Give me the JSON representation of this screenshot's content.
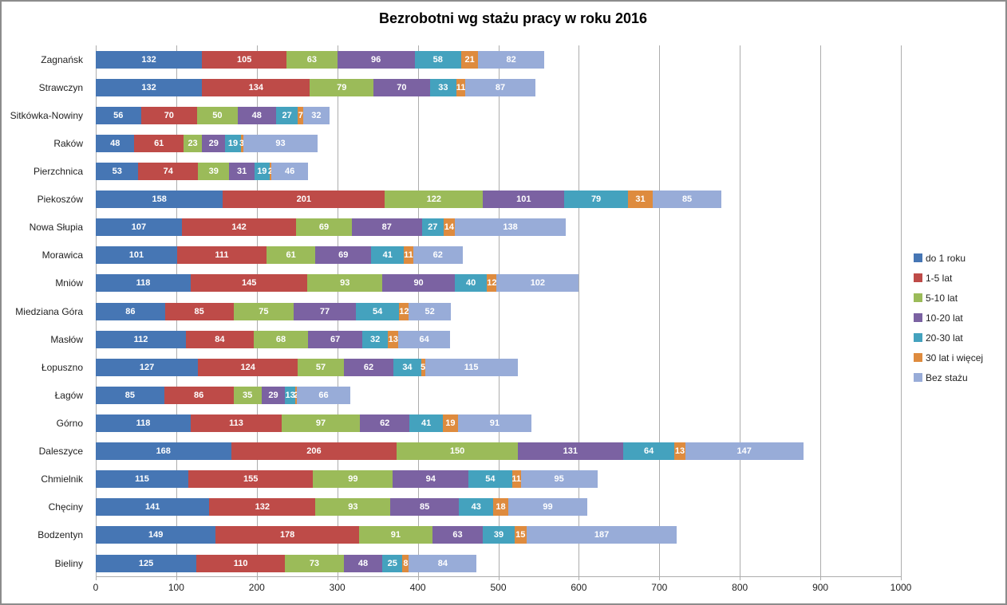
{
  "chart_data": {
    "type": "bar",
    "orientation": "horizontal",
    "stacked": true,
    "title": "Bezrobotni wg stażu pracy w roku 2016",
    "xlabel": "",
    "ylabel": "",
    "xlim": [
      0,
      1000
    ],
    "x_ticks": [
      0,
      100,
      200,
      300,
      400,
      500,
      600,
      700,
      800,
      900,
      1000
    ],
    "grid": true,
    "legend_position": "right",
    "data_labels": true,
    "data_label_color": "#ffffff",
    "categories": [
      "Zagnańsk",
      "Strawczyn",
      "Sitkówka-Nowiny",
      "Raków",
      "Pierzchnica",
      "Piekoszów",
      "Nowa Słupia",
      "Morawica",
      "Mniów",
      "Miedziana Góra",
      "Masłów",
      "Łopuszno",
      "Łagów",
      "Górno",
      "Daleszyce",
      "Chmielnik",
      "Chęciny",
      "Bodzentyn",
      "Bieliny"
    ],
    "series": [
      {
        "name": "do 1 roku",
        "color": "#4676b4",
        "values": [
          132,
          132,
          56,
          48,
          53,
          158,
          107,
          101,
          118,
          86,
          112,
          127,
          85,
          118,
          168,
          115,
          141,
          149,
          125
        ]
      },
      {
        "name": "1-5 lat",
        "color": "#be4b48",
        "values": [
          105,
          134,
          70,
          61,
          74,
          201,
          142,
          111,
          145,
          85,
          84,
          124,
          86,
          113,
          206,
          155,
          132,
          178,
          110
        ]
      },
      {
        "name": "5-10 lat",
        "color": "#9bbb59",
        "values": [
          63,
          79,
          50,
          23,
          39,
          122,
          69,
          61,
          93,
          75,
          68,
          57,
          35,
          97,
          150,
          99,
          93,
          91,
          73
        ]
      },
      {
        "name": "10-20 lat",
        "color": "#7b62a2",
        "values": [
          96,
          70,
          48,
          29,
          31,
          101,
          87,
          69,
          90,
          77,
          67,
          62,
          29,
          62,
          131,
          94,
          85,
          63,
          48
        ]
      },
      {
        "name": "20-30 lat",
        "color": "#44a2be",
        "values": [
          58,
          33,
          27,
          19,
          19,
          79,
          27,
          41,
          40,
          54,
          32,
          34,
          13,
          41,
          64,
          54,
          43,
          39,
          25
        ]
      },
      {
        "name": "30 lat i więcej",
        "color": "#de8b3e",
        "values": [
          21,
          11,
          7,
          3,
          2,
          31,
          14,
          11,
          12,
          12,
          13,
          5,
          2,
          19,
          13,
          11,
          18,
          15,
          8
        ]
      },
      {
        "name": "Bez stażu",
        "color": "#98acd8",
        "values": [
          82,
          87,
          32,
          93,
          46,
          85,
          138,
          62,
          102,
          52,
          64,
          115,
          66,
          91,
          147,
          95,
          99,
          187,
          84
        ]
      }
    ]
  }
}
